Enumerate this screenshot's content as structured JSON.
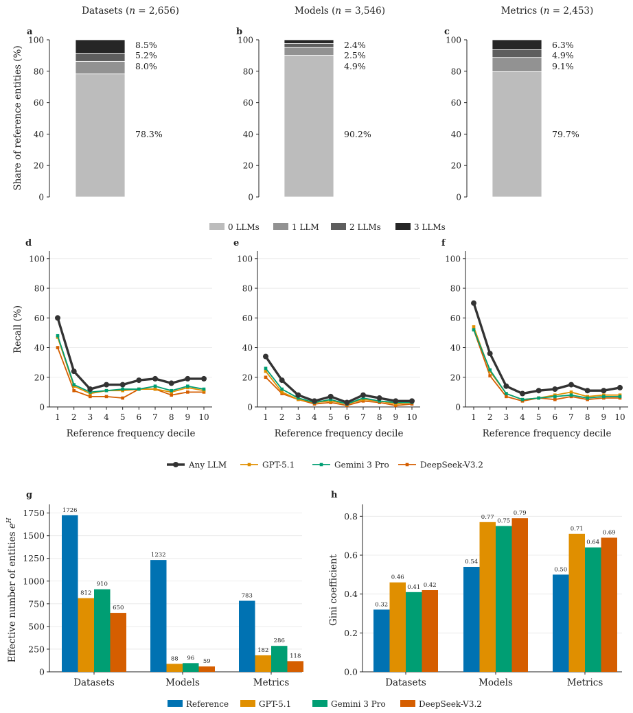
{
  "legend_stack": [
    "0 LLMs",
    "1 LLM",
    "2 LLMs",
    "3 LLMs"
  ],
  "legend_lines": [
    "Any LLM",
    "GPT-5.1",
    "Gemini 3 Pro",
    "DeepSeek-V3.2"
  ],
  "legend_bars": [
    "Reference",
    "GPT-5.1",
    "Gemini 3 Pro",
    "DeepSeek-V3.2"
  ],
  "colors": {
    "stack": [
      "#bcbcbc",
      "#929292",
      "#5e5e5e",
      "#262626"
    ],
    "any": "#333333",
    "reference": "#0072b2",
    "gpt": "#e08f00",
    "gemini": "#009e73",
    "deepseek": "#d55e00"
  },
  "chart_data": [
    {
      "panel": "a",
      "type": "bar",
      "stacked": true,
      "title_name": "Datasets",
      "title_n": "2,656",
      "ylabel": "Share of reference entities (%)",
      "ylim": [
        0,
        100
      ],
      "yticks": [
        0,
        20,
        40,
        60,
        80,
        100
      ],
      "series": [
        {
          "name": "0 LLMs",
          "value": 78.3,
          "label": "78.3%"
        },
        {
          "name": "1 LLM",
          "value": 8.0,
          "label": "8.0%"
        },
        {
          "name": "2 LLMs",
          "value": 5.2,
          "label": "5.2%"
        },
        {
          "name": "3 LLMs",
          "value": 8.5,
          "label": "8.5%"
        }
      ]
    },
    {
      "panel": "b",
      "type": "bar",
      "stacked": true,
      "title_name": "Models",
      "title_n": "3,546",
      "ylim": [
        0,
        100
      ],
      "yticks": [
        0,
        20,
        40,
        60,
        80,
        100
      ],
      "series": [
        {
          "name": "0 LLMs",
          "value": 90.2,
          "label": "90.2%"
        },
        {
          "name": "1 LLM",
          "value": 4.9,
          "label": "4.9%"
        },
        {
          "name": "2 LLMs",
          "value": 2.5,
          "label": "2.5%"
        },
        {
          "name": "3 LLMs",
          "value": 2.4,
          "label": "2.4%"
        }
      ]
    },
    {
      "panel": "c",
      "type": "bar",
      "stacked": true,
      "title_name": "Metrics",
      "title_n": "2,453",
      "ylim": [
        0,
        100
      ],
      "yticks": [
        0,
        20,
        40,
        60,
        80,
        100
      ],
      "series": [
        {
          "name": "0 LLMs",
          "value": 79.7,
          "label": "79.7%"
        },
        {
          "name": "1 LLM",
          "value": 9.1,
          "label": "9.1%"
        },
        {
          "name": "2 LLMs",
          "value": 4.9,
          "label": "4.9%"
        },
        {
          "name": "3 LLMs",
          "value": 6.3,
          "label": "6.3%"
        }
      ]
    },
    {
      "panel": "d",
      "type": "line",
      "xlabel": "Reference frequency decile",
      "ylabel": "Recall (%)",
      "x": [
        1,
        2,
        3,
        4,
        5,
        6,
        7,
        8,
        9,
        10
      ],
      "ylim": [
        0,
        105
      ],
      "yticks": [
        0,
        20,
        40,
        60,
        80,
        100
      ],
      "series": [
        {
          "name": "Any LLM",
          "values": [
            60,
            24,
            12,
            15,
            15,
            18,
            19,
            16,
            19,
            19
          ]
        },
        {
          "name": "GPT-5.1",
          "values": [
            47,
            14,
            9,
            11,
            11,
            12,
            12,
            10,
            13,
            11
          ]
        },
        {
          "name": "Gemini 3 Pro",
          "values": [
            48,
            15,
            10,
            11,
            12,
            12,
            14,
            11,
            14,
            12
          ]
        },
        {
          "name": "DeepSeek-V3.2",
          "values": [
            40,
            11,
            7,
            7,
            6,
            12,
            12,
            8,
            10,
            10
          ]
        }
      ]
    },
    {
      "panel": "e",
      "type": "line",
      "xlabel": "Reference frequency decile",
      "x": [
        1,
        2,
        3,
        4,
        5,
        6,
        7,
        8,
        9,
        10
      ],
      "ylim": [
        0,
        105
      ],
      "yticks": [
        0,
        20,
        40,
        60,
        80,
        100
      ],
      "series": [
        {
          "name": "Any LLM",
          "values": [
            34,
            18,
            8,
            4,
            7,
            3,
            8,
            6,
            4,
            4
          ]
        },
        {
          "name": "GPT-5.1",
          "values": [
            24,
            10,
            5,
            3,
            4,
            2,
            5,
            4,
            2,
            3
          ]
        },
        {
          "name": "Gemini 3 Pro",
          "values": [
            26,
            12,
            6,
            3,
            5,
            2,
            6,
            4,
            3,
            3
          ]
        },
        {
          "name": "DeepSeek-V3.2",
          "values": [
            20,
            9,
            5,
            2,
            3,
            1,
            4,
            3,
            1,
            2
          ]
        }
      ]
    },
    {
      "panel": "f",
      "type": "line",
      "xlabel": "Reference frequency decile",
      "x": [
        1,
        2,
        3,
        4,
        5,
        6,
        7,
        8,
        9,
        10
      ],
      "ylim": [
        0,
        105
      ],
      "yticks": [
        0,
        20,
        40,
        60,
        80,
        100
      ],
      "series": [
        {
          "name": "Any LLM",
          "values": [
            70,
            36,
            14,
            9,
            11,
            12,
            15,
            11,
            11,
            13
          ]
        },
        {
          "name": "GPT-5.1",
          "values": [
            54,
            24,
            9,
            5,
            6,
            8,
            10,
            7,
            8,
            8
          ]
        },
        {
          "name": "Gemini 3 Pro",
          "values": [
            52,
            25,
            9,
            5,
            6,
            7,
            8,
            6,
            7,
            7
          ]
        },
        {
          "name": "DeepSeek-V3.2",
          "values": [
            52,
            21,
            7,
            4,
            6,
            5,
            7,
            5,
            6,
            6
          ]
        }
      ]
    },
    {
      "panel": "g",
      "type": "bar",
      "ylabel_main": "Effective number of entities ",
      "ylabel_base": "e",
      "ylabel_sup": "H",
      "categories": [
        "Datasets",
        "Models",
        "Metrics"
      ],
      "ylim": [
        0,
        1800
      ],
      "yticks": [
        0,
        250,
        500,
        750,
        1000,
        1250,
        1500,
        1750
      ],
      "series": [
        {
          "name": "Reference",
          "values": [
            1726,
            1232,
            783
          ],
          "labels": [
            "1726",
            "1232",
            "783"
          ]
        },
        {
          "name": "GPT-5.1",
          "values": [
            812,
            88,
            182
          ],
          "labels": [
            "812",
            "88",
            "182"
          ]
        },
        {
          "name": "Gemini 3 Pro",
          "values": [
            910,
            96,
            286
          ],
          "labels": [
            "910",
            "96",
            "286"
          ]
        },
        {
          "name": "DeepSeek-V3.2",
          "values": [
            650,
            59,
            118
          ],
          "labels": [
            "650",
            "59",
            "118"
          ]
        }
      ]
    },
    {
      "panel": "h",
      "type": "bar",
      "ylabel": "Gini coefficient",
      "categories": [
        "Datasets",
        "Models",
        "Metrics"
      ],
      "ylim": [
        0,
        0.84
      ],
      "yticks": [
        0,
        0.2,
        0.4,
        0.6,
        0.8
      ],
      "ytick_labels": [
        "0.0",
        "0.2",
        "0.4",
        "0.6",
        "0.8"
      ],
      "series": [
        {
          "name": "Reference",
          "values": [
            0.32,
            0.54,
            0.5
          ],
          "labels": [
            "0.32",
            "0.54",
            "0.50"
          ]
        },
        {
          "name": "GPT-5.1",
          "values": [
            0.46,
            0.77,
            0.71
          ],
          "labels": [
            "0.46",
            "0.77",
            "0.71"
          ]
        },
        {
          "name": "Gemini 3 Pro",
          "values": [
            0.41,
            0.75,
            0.64
          ],
          "labels": [
            "0.41",
            "0.75",
            "0.64"
          ]
        },
        {
          "name": "DeepSeek-V3.2",
          "values": [
            0.42,
            0.79,
            0.69
          ],
          "labels": [
            "0.42",
            "0.79",
            "0.69"
          ]
        }
      ]
    }
  ]
}
